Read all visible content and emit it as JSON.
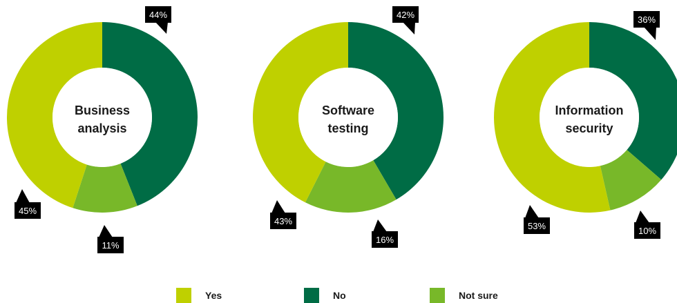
{
  "chart_data": [
    {
      "type": "pie",
      "center_label": [
        "Business",
        "analysis"
      ],
      "categories": [
        "Yes",
        "No",
        "Not sure"
      ],
      "values": [
        45,
        44,
        11
      ],
      "value_labels": [
        "45%",
        "44%",
        "11%"
      ]
    },
    {
      "type": "pie",
      "center_label": [
        "Software",
        "testing"
      ],
      "categories": [
        "Yes",
        "No",
        "Not sure"
      ],
      "values": [
        43,
        42,
        16
      ],
      "value_labels": [
        "43%",
        "42%",
        "16%"
      ]
    },
    {
      "type": "pie",
      "center_label": [
        "Information",
        "security"
      ],
      "categories": [
        "Yes",
        "No",
        "Not sure"
      ],
      "values": [
        53,
        36,
        10
      ],
      "value_labels": [
        "53%",
        "36%",
        "10%"
      ]
    }
  ],
  "legend": [
    {
      "label": "Yes",
      "color": "#bfd000"
    },
    {
      "label": "No",
      "color": "#006c45"
    },
    {
      "label": "Not sure",
      "color": "#78b829"
    }
  ],
  "colors": {
    "yes": "#bfd000",
    "no": "#006c45",
    "not_sure": "#78b829",
    "callout": "#000000"
  }
}
